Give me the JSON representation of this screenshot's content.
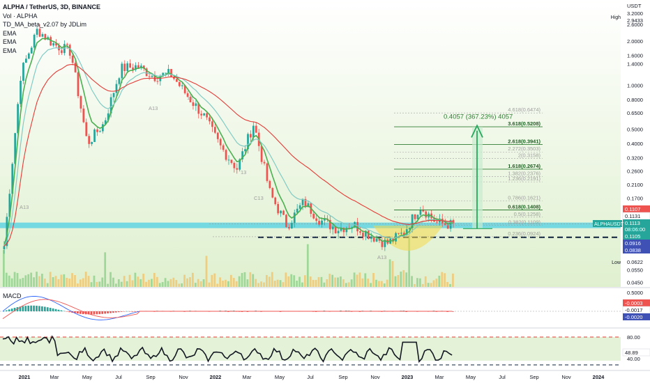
{
  "header": {
    "symbol": "ALPHA / TetherUS, 3D, BINANCE",
    "volume_label": "Vol · ALPHA",
    "indicator": "TD_MA_beta_v2.07 by JDLim",
    "ema_labels": [
      "EMA",
      "EMA",
      "EMA"
    ],
    "currency": "USDT",
    "high_label": "High",
    "low_label": "Low"
  },
  "colors": {
    "up": "#26a69a",
    "down": "#ef5350",
    "ema_fast": "#4caf50",
    "ema_mid": "#80cbc4",
    "ema_slow": "#e53935",
    "support_band": "#4dd0e1",
    "target_arrow": "#26a65b",
    "bg_green": "#e8f5e9",
    "rsi_line": "#131722"
  },
  "price_axis": {
    "labels": [
      "3.2000",
      "2.9433",
      "2.6000",
      "2.0000",
      "1.6000",
      "1.4000",
      "1.0000",
      "0.8000",
      "0.6500",
      "0.5000",
      "0.4000",
      "0.3200",
      "0.2600",
      "0.2100",
      "0.1700",
      "0.0622",
      "0.0550",
      "0.0450"
    ],
    "badges": [
      {
        "text": "0.1107",
        "color": "#ef5350"
      },
      {
        "text": "0.1131",
        "color": "#ffffff"
      },
      {
        "text": "0.1113",
        "color": "#26a69a"
      },
      {
        "text": "08:06:00",
        "color": "#26a69a"
      },
      {
        "text": "0.1105",
        "color": "#26a69a"
      },
      {
        "text": "0.0916",
        "color": "#3f51b5"
      },
      {
        "text": "0.0838",
        "color": "#3f51b5"
      }
    ],
    "pair_badge": "ALPHAUSDT"
  },
  "fib_levels": [
    {
      "label": "4.618(0.6474)",
      "bold": false
    },
    {
      "label": "3.618(0.5208)",
      "bold": true
    },
    {
      "label": "2.618(0.3941)",
      "bold": true
    },
    {
      "label": "2.272(0.3503)",
      "bold": false
    },
    {
      "label": "2(0.3158)",
      "bold": false
    },
    {
      "label": "1.618(0.2674)",
      "bold": true
    },
    {
      "label": "1.382(0.2376)",
      "bold": false
    },
    {
      "label": "1.236(0.2191)",
      "bold": false
    },
    {
      "label": "0.786(0.1621)",
      "bold": false
    },
    {
      "label": "0.618(0.1408)",
      "bold": true
    },
    {
      "label": "0.5(0.1258)",
      "bold": false
    },
    {
      "label": "0.382(0.1109)",
      "bold": false
    },
    {
      "label": "0.236(0.0924)",
      "bold": false
    }
  ],
  "target_annotation": "0.4057 (367.23%) 4057",
  "td_marks": [
    "A13",
    "A13",
    "13",
    "13",
    "C13",
    "A13"
  ],
  "macd": {
    "title": "MACD",
    "axis_label": "0.5000",
    "badges": [
      {
        "text": "-0.0003",
        "color": "#ef5350"
      },
      {
        "text": "-0.0017",
        "color": "#ffffff"
      },
      {
        "text": "-0.0020",
        "color": "#3f51b5"
      }
    ]
  },
  "rsi": {
    "axis_labels": [
      "80.00",
      "40.00"
    ],
    "value_badge": "48.89"
  },
  "x_axis": {
    "labels": [
      "2021",
      "Mar",
      "May",
      "Jul",
      "Sep",
      "Nov",
      "2022",
      "Mar",
      "May",
      "Jul",
      "Sep",
      "Nov",
      "2023",
      "Mar",
      "May",
      "Jul",
      "Sep",
      "Nov",
      "2024"
    ]
  },
  "chart_data": {
    "type": "line",
    "title": "ALPHA / TetherUS, 3D, BINANCE",
    "xlabel": "",
    "ylabel": "USDT",
    "y_scale": "log",
    "ylim": [
      0.045,
      3.2
    ],
    "x": [
      "2021-01",
      "2021-02",
      "2021-03",
      "2021-04",
      "2021-05",
      "2021-06",
      "2021-07",
      "2021-08",
      "2021-09",
      "2021-10",
      "2021-11",
      "2021-12",
      "2022-01",
      "2022-02",
      "2022-03",
      "2022-04",
      "2022-05",
      "2022-06",
      "2022-07",
      "2022-08",
      "2022-09",
      "2022-10",
      "2022-11",
      "2022-12",
      "2023-01",
      "2023-02",
      "2023-03",
      "2023-04"
    ],
    "series": [
      {
        "name": "",
        "values": [
          0.08,
          1.2,
          2.4,
          1.9,
          1.7,
          0.4,
          0.55,
          1.3,
          1.35,
          1.15,
          1.2,
          0.85,
          0.62,
          0.38,
          0.27,
          0.55,
          0.18,
          0.11,
          0.16,
          0.12,
          0.105,
          0.112,
          0.095,
          0.083,
          0.098,
          0.15,
          0.115,
          0.1113
        ]
      }
    ],
    "volume_note": "Vol · ALPHA"
  }
}
